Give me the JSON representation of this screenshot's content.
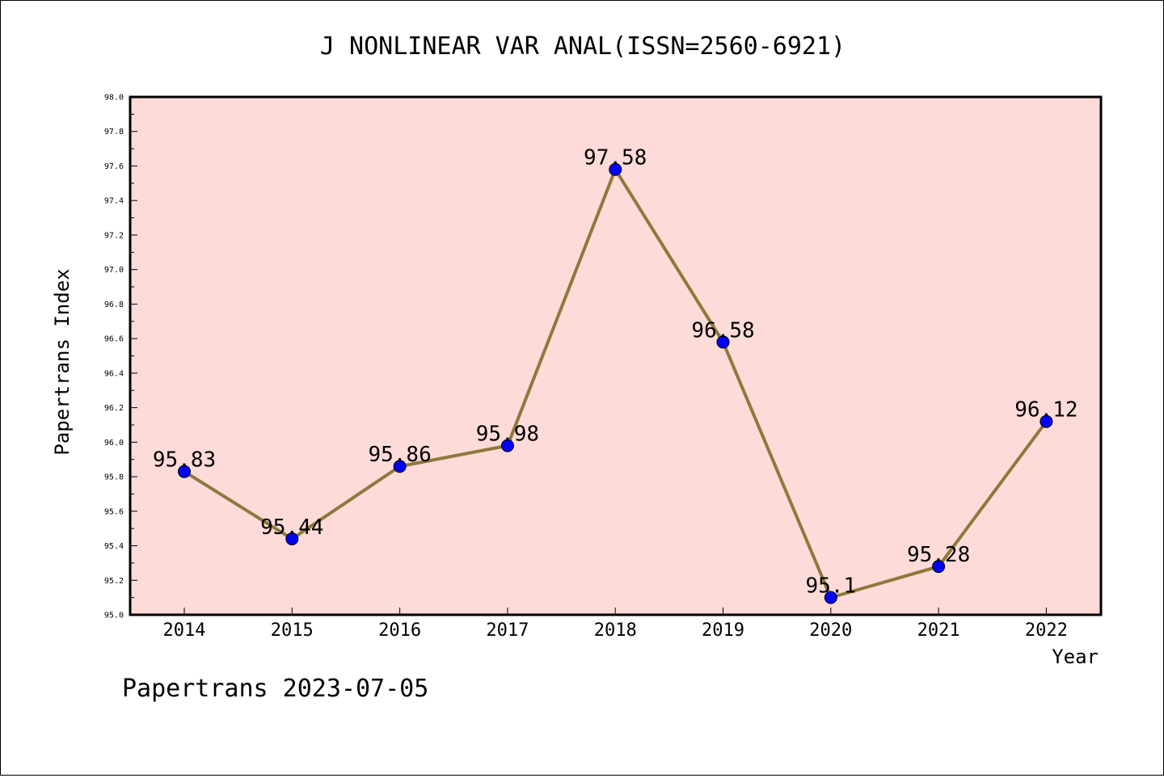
{
  "chart_data": {
    "type": "line",
    "title": "J NONLINEAR VAR ANAL(ISSN=2560-6921)",
    "xlabel": "Year",
    "ylabel": "Papertrans Index",
    "categories": [
      "2014",
      "2015",
      "2016",
      "2017",
      "2018",
      "2019",
      "2020",
      "2021",
      "2022"
    ],
    "series": [
      {
        "values": [
          95.83,
          95.44,
          95.86,
          95.98,
          97.58,
          96.58,
          95.1,
          95.28,
          96.12
        ],
        "data_labels": [
          "95.83",
          "95.44",
          "95.86",
          "95.98",
          "97.58",
          "96.58",
          "95.1",
          "95.28",
          "96.12"
        ]
      }
    ],
    "ylim": [
      95.0,
      98.0
    ],
    "y_ticks": [
      "95.0",
      "95.2",
      "95.4",
      "95.6",
      "95.8",
      "96.0",
      "96.2",
      "96.4",
      "96.6",
      "96.8",
      "97.0",
      "97.2",
      "97.4",
      "97.6",
      "97.8",
      "98.0"
    ],
    "grid": false,
    "legend": "none",
    "colors": {
      "plot_background": "#fddbd8",
      "line": "#8c7a3c",
      "marker": "#0000ff"
    }
  },
  "footer": {
    "text": "Papertrans 2023-07-05"
  }
}
